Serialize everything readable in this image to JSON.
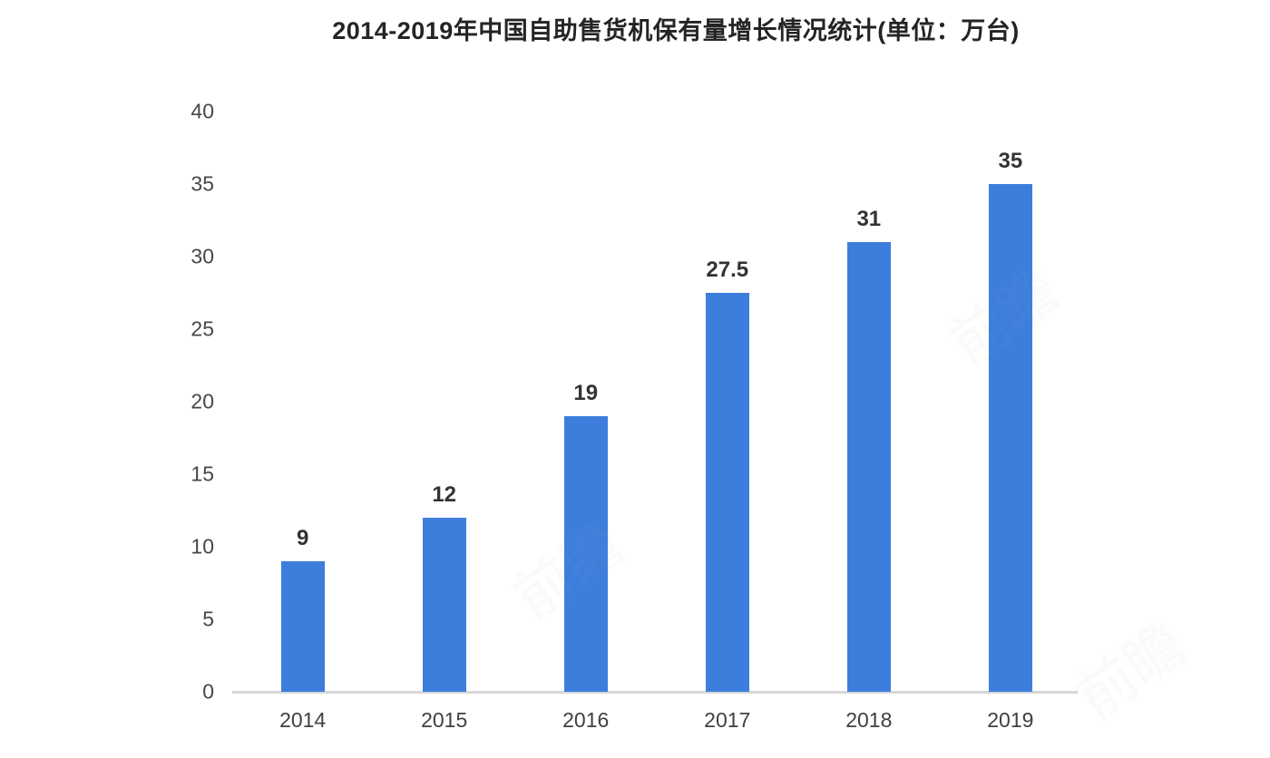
{
  "title": "2014-2019年中国自助售货机保有量增长情况统计(单位：万台)",
  "watermark": {
    "text": "前瞻"
  },
  "chart_data": {
    "type": "bar",
    "title": "2014-2019年中国自助售货机保有量增长情况统计(单位：万台)",
    "unit": "万台",
    "categories": [
      "2014",
      "2015",
      "2016",
      "2017",
      "2018",
      "2019"
    ],
    "values": [
      9,
      12,
      19,
      27.5,
      31,
      35
    ],
    "data_labels": [
      "9",
      "12",
      "19",
      "27.5",
      "31",
      "35"
    ],
    "xlabel": "",
    "ylabel": "",
    "ylim": [
      0,
      40
    ],
    "y_ticks": [
      0,
      5,
      10,
      15,
      20,
      25,
      30,
      35,
      40
    ],
    "grid": false,
    "legend": "none",
    "bar_color": "#3d7edd",
    "axis_line_color": "#d7d7d7",
    "title_color": "#242424",
    "label_color": "#333333",
    "tick_color": "#474747"
  }
}
